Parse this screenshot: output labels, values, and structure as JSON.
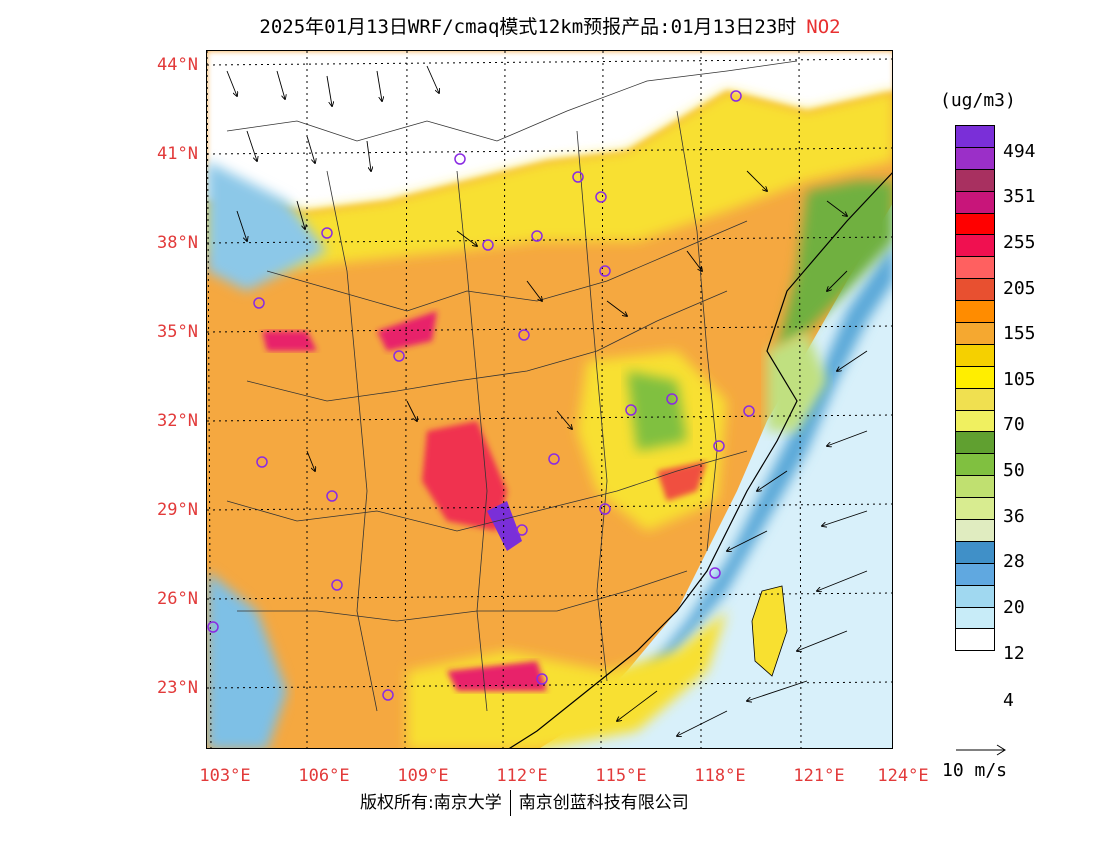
{
  "header": {
    "title": "2025年01月13日WRF/cmaq模式12km预报产品:01月13日23时",
    "pollutant": "NO2"
  },
  "lat_labels": [
    "44°N",
    "41°N",
    "38°N",
    "35°N",
    "32°N",
    "29°N",
    "26°N",
    "23°N"
  ],
  "lon_labels": [
    "103°E",
    "106°E",
    "109°E",
    "112°E",
    "115°E",
    "118°E",
    "121°E",
    "124°E"
  ],
  "colorbar": {
    "unit": "(ug/m3)",
    "labels": [
      "494",
      "351",
      "255",
      "205",
      "155",
      "105",
      "70",
      "50",
      "36",
      "28",
      "20",
      "12",
      "4"
    ],
    "colors": [
      "#7a2fd8",
      "#9b2fc8",
      "#a83060",
      "#c8157a",
      "#ff0000",
      "#f01050",
      "#ff6060",
      "#e85030",
      "#ff8c00",
      "#f5a830",
      "#f5d000",
      "#ffee00",
      "#f0e050",
      "#f0f060",
      "#60a030",
      "#80c040",
      "#c0e070",
      "#d8ec90",
      "#e0ecc0",
      "#4090c8",
      "#60a8e0",
      "#a0d8f0",
      "#c8ecf8",
      "#ffffff"
    ]
  },
  "vector": {
    "label": "10 m/s"
  },
  "footer": {
    "left": "版权所有:南京大学",
    "right": "南京创蓝科技有限公司"
  }
}
